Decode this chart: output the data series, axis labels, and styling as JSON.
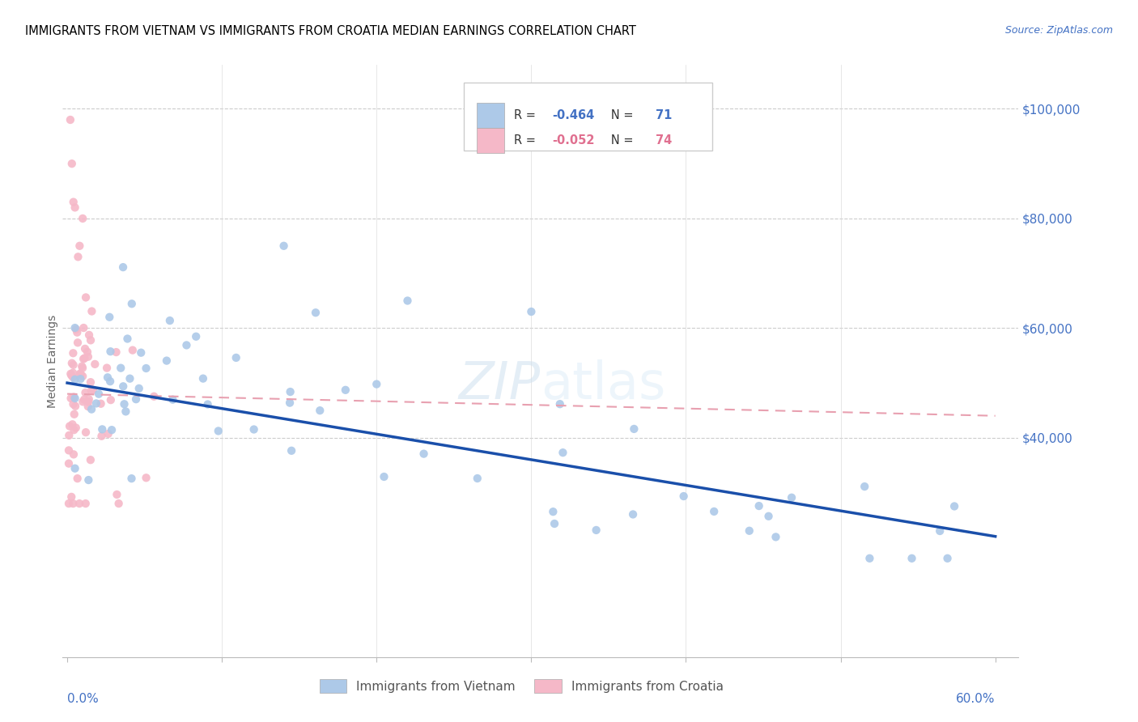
{
  "title": "IMMIGRANTS FROM VIETNAM VS IMMIGRANTS FROM CROATIA MEDIAN EARNINGS CORRELATION CHART",
  "source": "Source: ZipAtlas.com",
  "ylabel": "Median Earnings",
  "watermark_zip": "ZIP",
  "watermark_atlas": "atlas",
  "vietnam_color": "#adc9e8",
  "croatia_color": "#f5b8c8",
  "vietnam_line_color": "#1a4faa",
  "croatia_line_color": "#e8a0b0",
  "r_vietnam": "-0.464",
  "n_vietnam": "71",
  "r_croatia": "-0.052",
  "n_croatia": "74",
  "label_vietnam": "Immigrants from Vietnam",
  "label_croatia": "Immigrants from Croatia",
  "r_color_vietnam": "#4472c4",
  "r_color_croatia": "#e07090",
  "ytick_values": [
    40000,
    60000,
    80000,
    100000
  ],
  "ytick_labels": [
    "$40,000",
    "$60,000",
    "$80,000",
    "$100,000"
  ],
  "ymin": 0,
  "ymax": 108000,
  "xmin": -0.003,
  "xmax": 0.615,
  "vietnam_trend_x": [
    0.0,
    0.6
  ],
  "vietnam_trend_y": [
    50000,
    22000
  ],
  "croatia_trend_x": [
    0.0,
    0.6
  ],
  "croatia_trend_y": [
    48000,
    44000
  ]
}
